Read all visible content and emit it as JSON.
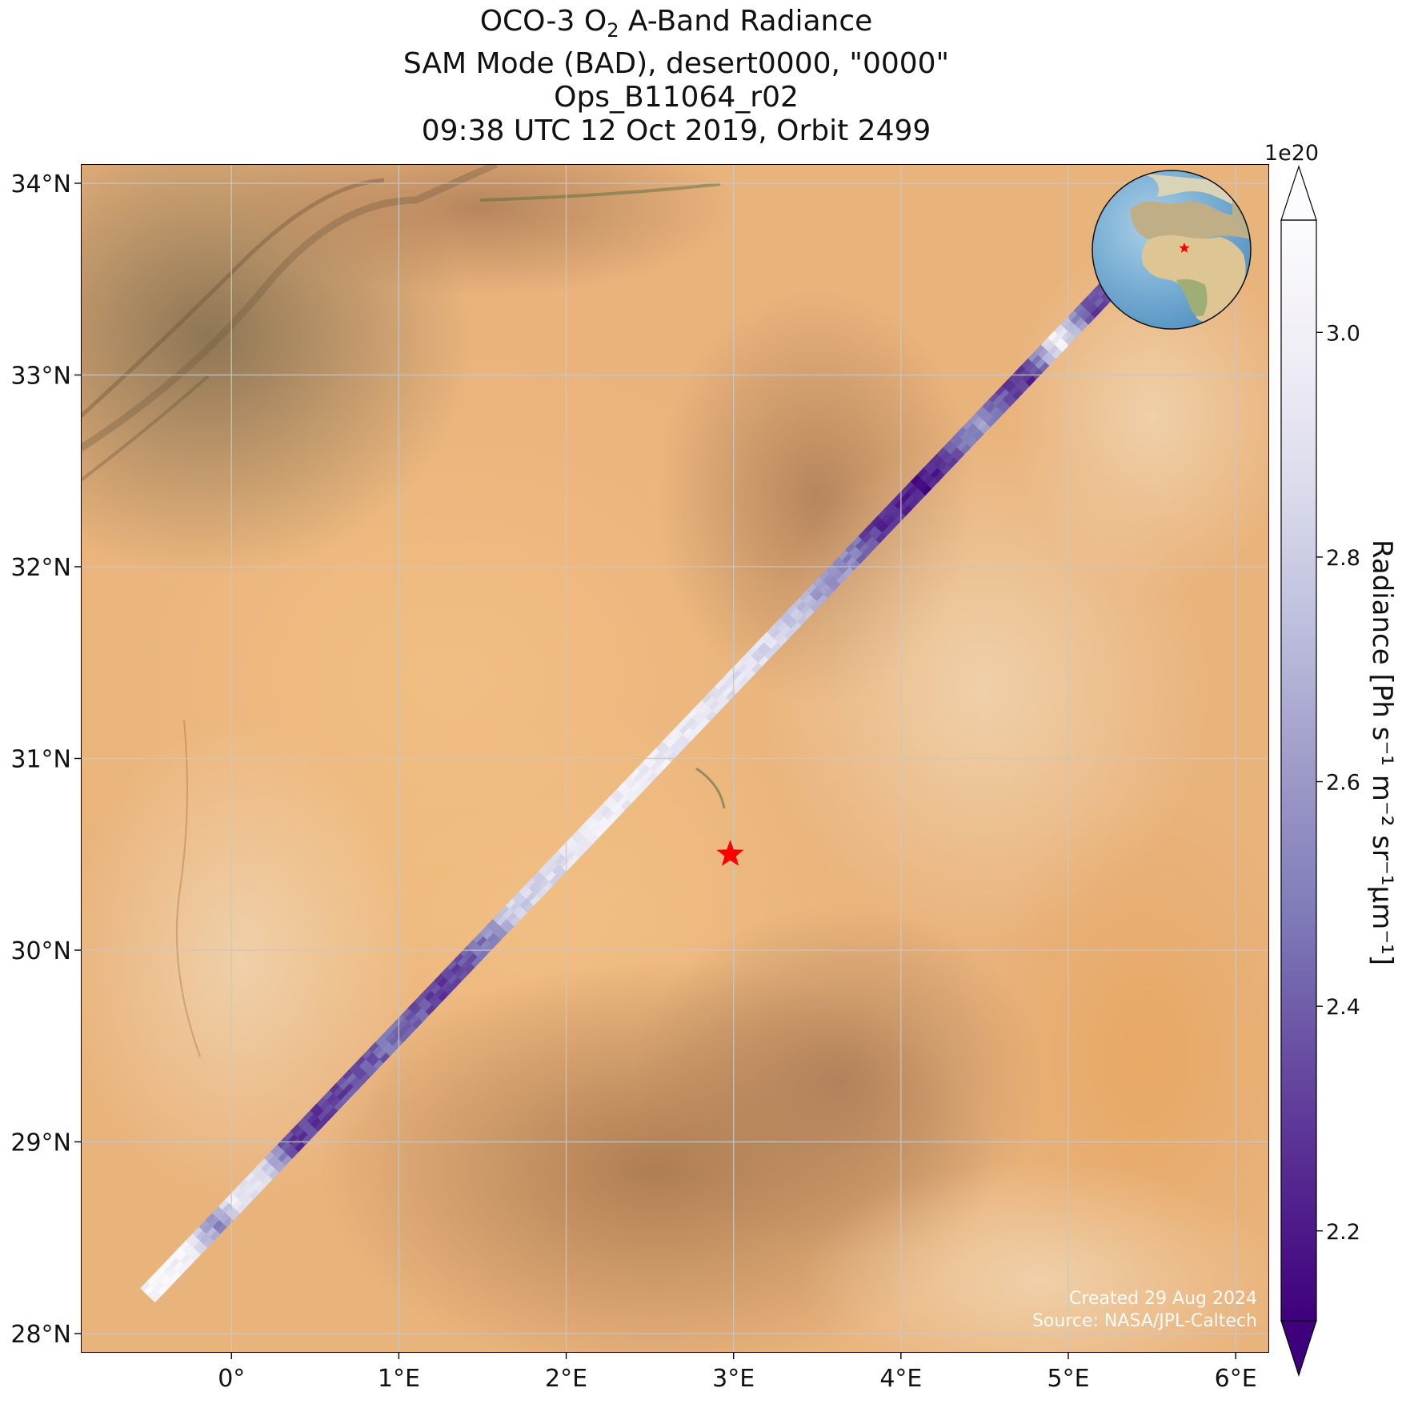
{
  "title": {
    "line1_pre": "OCO-3 O",
    "line1_sub": "2",
    "line1_post": " A-Band Radiance",
    "line2": "SAM Mode (BAD), desert0000, \"0000\"",
    "line3": "Ops_B11064_r02",
    "line4": "09:38 UTC 12 Oct 2019, Orbit 2499"
  },
  "map": {
    "lon_range": [
      -0.9,
      6.2
    ],
    "lat_range": [
      27.9,
      34.1
    ],
    "lon_ticks": [
      {
        "value": 0,
        "label": "0°"
      },
      {
        "value": 1,
        "label": "1°E"
      },
      {
        "value": 2,
        "label": "2°E"
      },
      {
        "value": 3,
        "label": "3°E"
      },
      {
        "value": 4,
        "label": "4°E"
      },
      {
        "value": 5,
        "label": "5°E"
      },
      {
        "value": 6,
        "label": "6°E"
      }
    ],
    "lat_ticks": [
      {
        "value": 28,
        "label": "28°N"
      },
      {
        "value": 29,
        "label": "29°N"
      },
      {
        "value": 30,
        "label": "30°N"
      },
      {
        "value": 31,
        "label": "31°N"
      },
      {
        "value": 32,
        "label": "32°N"
      },
      {
        "value": 33,
        "label": "33°N"
      },
      {
        "value": 34,
        "label": "34°N"
      }
    ],
    "grid": true,
    "target_marker": {
      "lon": 2.98,
      "lat": 30.5,
      "symbol": "star",
      "color": "#ff0000"
    },
    "basemap": "desert satellite imagery",
    "inset": {
      "type": "globe",
      "position": "top-right",
      "marker": "star"
    }
  },
  "swath": {
    "start": {
      "lon": -0.5,
      "lat": 28.2
    },
    "end": {
      "lon": 5.35,
      "lat": 33.55
    },
    "cross_track_width_deg": 0.12,
    "radiance_profile_e20": [
      [
        0.0,
        3.05
      ],
      [
        0.04,
        3.02
      ],
      [
        0.07,
        2.55
      ],
      [
        0.09,
        2.95
      ],
      [
        0.12,
        2.85
      ],
      [
        0.15,
        2.3
      ],
      [
        0.2,
        2.35
      ],
      [
        0.25,
        2.45
      ],
      [
        0.3,
        2.3
      ],
      [
        0.34,
        2.45
      ],
      [
        0.37,
        2.8
      ],
      [
        0.4,
        2.85
      ],
      [
        0.45,
        2.95
      ],
      [
        0.5,
        2.97
      ],
      [
        0.55,
        2.95
      ],
      [
        0.6,
        2.9
      ],
      [
        0.65,
        2.85
      ],
      [
        0.68,
        2.65
      ],
      [
        0.71,
        2.6
      ],
      [
        0.75,
        2.25
      ],
      [
        0.8,
        2.2
      ],
      [
        0.85,
        2.6
      ],
      [
        0.88,
        2.35
      ],
      [
        0.9,
        2.25
      ],
      [
        0.93,
        3.0
      ],
      [
        0.96,
        2.35
      ],
      [
        1.0,
        2.3
      ]
    ]
  },
  "colorbar": {
    "label": "Radiance [Ph s⁻¹ m⁻² sr⁻¹μm⁻¹]",
    "scale_label": "1e20",
    "range": [
      2.12,
      3.1
    ],
    "ticks": [
      {
        "value": 2.2,
        "label": "2.2"
      },
      {
        "value": 2.4,
        "label": "2.4"
      },
      {
        "value": 2.6,
        "label": "2.6"
      },
      {
        "value": 2.8,
        "label": "2.8"
      },
      {
        "value": 3.0,
        "label": "3.0"
      }
    ],
    "extend": "both",
    "colormap": "Purples_r",
    "colors": [
      "#3f007d",
      "#54278f",
      "#6a51a3",
      "#807dba",
      "#9e9ac8",
      "#bcbddc",
      "#dadaeb",
      "#efedf5",
      "#fcfbfd"
    ]
  },
  "credits": {
    "created": "Created 29 Aug 2024",
    "source": "Source: NASA/JPL-Caltech"
  }
}
